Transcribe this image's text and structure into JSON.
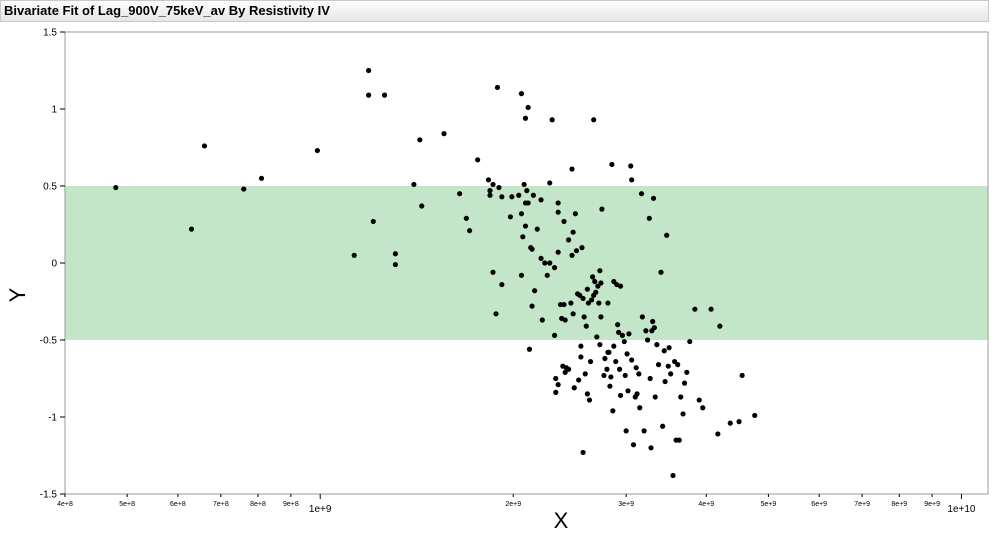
{
  "header": {
    "title": "Bivariate Fit of Lag_900V_75keV_av By Resistivity IV"
  },
  "chart_data": {
    "type": "scatter",
    "title": "Bivariate Fit of Lag_900V_75keV_av By Resistivity IV",
    "xlabel": "X",
    "ylabel": "Y",
    "x_scale": "log",
    "xlim": [
      400000000,
      11000000000
    ],
    "ylim": [
      -1.5,
      1.5
    ],
    "y_ticks": [
      {
        "value": 1.5,
        "label": "1.5"
      },
      {
        "value": 1,
        "label": "1"
      },
      {
        "value": 0.5,
        "label": "0.5"
      },
      {
        "value": 0,
        "label": "0"
      },
      {
        "value": -0.5,
        "label": "-0.5"
      },
      {
        "value": -1,
        "label": "-1"
      },
      {
        "value": -1.5,
        "label": "-1.5"
      }
    ],
    "x_ticks": [
      {
        "value": 400000000,
        "label": "4e+8"
      },
      {
        "value": 500000000,
        "label": "5e+8"
      },
      {
        "value": 600000000,
        "label": "6e+8"
      },
      {
        "value": 700000000,
        "label": "7e+8"
      },
      {
        "value": 800000000,
        "label": "8e+8"
      },
      {
        "value": 900000000,
        "label": "9e+8"
      },
      {
        "value": 1000000000,
        "label": "1e+9",
        "major": true
      },
      {
        "value": 2000000000,
        "label": "2e+9"
      },
      {
        "value": 3000000000,
        "label": "3e+9"
      },
      {
        "value": 4000000000,
        "label": "4e+9"
      },
      {
        "value": 5000000000,
        "label": "5e+9"
      },
      {
        "value": 6000000000,
        "label": "6e+9"
      },
      {
        "value": 7000000000,
        "label": "7e+9"
      },
      {
        "value": 8000000000,
        "label": "8e+9"
      },
      {
        "value": 9000000000,
        "label": "9e+9"
      },
      {
        "value": 10000000000,
        "label": "1e+10",
        "major": true
      }
    ],
    "band": {
      "y_min": -0.5,
      "y_max": 0.5,
      "color": "#c4e6c8"
    },
    "point_color": "#000000",
    "points": [
      [
        480000000.0,
        0.49
      ],
      [
        630000000.0,
        0.22
      ],
      [
        660000000.0,
        0.76
      ],
      [
        760000000.0,
        0.48
      ],
      [
        810000000.0,
        0.55
      ],
      [
        990000000.0,
        0.73
      ],
      [
        1130000000.0,
        0.05
      ],
      [
        1190000000.0,
        1.25
      ],
      [
        1190000000.0,
        1.09
      ],
      [
        1210000000.0,
        0.27
      ],
      [
        1260000000.0,
        1.09
      ],
      [
        1310000000.0,
        0.06
      ],
      [
        1310000000.0,
        -0.01
      ],
      [
        1400000000.0,
        0.51
      ],
      [
        1430000000.0,
        0.8
      ],
      [
        1440000000.0,
        0.37
      ],
      [
        1560000000.0,
        0.84
      ],
      [
        1650000000.0,
        0.45
      ],
      [
        1690000000.0,
        0.29
      ],
      [
        1710000000.0,
        0.21
      ],
      [
        1760000000.0,
        0.67
      ],
      [
        1830000000.0,
        0.54
      ],
      [
        1840000000.0,
        0.47
      ],
      [
        1840000000.0,
        0.44
      ],
      [
        1860000000.0,
        0.51
      ],
      [
        1860000000.0,
        -0.06
      ],
      [
        1880000000.0,
        -0.33
      ],
      [
        1890000000.0,
        1.14
      ],
      [
        1900000000.0,
        0.49
      ],
      [
        1920000000.0,
        0.43
      ],
      [
        1920000000.0,
        -0.14
      ],
      [
        1980000000.0,
        0.3
      ],
      [
        1990000000.0,
        0.43
      ],
      [
        2040000000.0,
        0.44
      ],
      [
        2060000000.0,
        0.32
      ],
      [
        2060000000.0,
        -0.08
      ],
      [
        2060000000.0,
        1.1
      ],
      [
        2070000000.0,
        0.17
      ],
      [
        2080000000.0,
        0.51
      ],
      [
        2090000000.0,
        0.39
      ],
      [
        2090000000.0,
        0.24
      ],
      [
        2090000000.0,
        0.94
      ],
      [
        2100000000.0,
        0.47
      ],
      [
        2110000000.0,
        1.01
      ],
      [
        2110000000.0,
        0.39
      ],
      [
        2120000000.0,
        -0.56
      ],
      [
        2130000000.0,
        0.1
      ],
      [
        2140000000.0,
        0.09
      ],
      [
        2140000000.0,
        -0.28
      ],
      [
        2150000000.0,
        0.44
      ],
      [
        2160000000.0,
        -0.18
      ],
      [
        2180000000.0,
        0.22
      ],
      [
        2210000000.0,
        0.03
      ],
      [
        2210000000.0,
        0.41
      ],
      [
        2220000000.0,
        -0.37
      ],
      [
        2240000000.0,
        0.0
      ],
      [
        2260000000.0,
        -0.08
      ],
      [
        2280000000.0,
        0.0
      ],
      [
        2280000000.0,
        0.52
      ],
      [
        2300000000.0,
        0.93
      ],
      [
        2320000000.0,
        -0.03
      ],
      [
        2320000000.0,
        -0.47
      ],
      [
        2330000000.0,
        -0.84
      ],
      [
        2330000000.0,
        -0.75
      ],
      [
        2350000000.0,
        0.39
      ],
      [
        2350000000.0,
        0.33
      ],
      [
        2350000000.0,
        0.07
      ],
      [
        2350000000.0,
        -0.79
      ],
      [
        2370000000.0,
        -0.27
      ],
      [
        2380000000.0,
        -0.36
      ],
      [
        2390000000.0,
        -0.67
      ],
      [
        2400000000.0,
        0.27
      ],
      [
        2400000000.0,
        -0.27
      ],
      [
        2410000000.0,
        -0.37
      ],
      [
        2410000000.0,
        -0.71
      ],
      [
        2420000000.0,
        -0.68
      ],
      [
        2440000000.0,
        0.15
      ],
      [
        2440000000.0,
        -0.69
      ],
      [
        2460000000.0,
        -0.26
      ],
      [
        2470000000.0,
        0.05
      ],
      [
        2470000000.0,
        0.61
      ],
      [
        2480000000.0,
        0.2
      ],
      [
        2480000000.0,
        -0.33
      ],
      [
        2490000000.0,
        -0.81
      ],
      [
        2500000000.0,
        0.32
      ],
      [
        2510000000.0,
        0.08
      ],
      [
        2520000000.0,
        -0.2
      ],
      [
        2530000000.0,
        -0.76
      ],
      [
        2540000000.0,
        -0.21
      ],
      [
        2550000000.0,
        -0.54
      ],
      [
        2550000000.0,
        -0.61
      ],
      [
        2560000000.0,
        0.1
      ],
      [
        2570000000.0,
        -1.23
      ],
      [
        2570000000.0,
        -0.23
      ],
      [
        2580000000.0,
        -0.35
      ],
      [
        2590000000.0,
        -0.72
      ],
      [
        2600000000.0,
        -0.41
      ],
      [
        2610000000.0,
        -0.85
      ],
      [
        2610000000.0,
        -0.17
      ],
      [
        2620000000.0,
        -0.26
      ],
      [
        2630000000.0,
        -0.89
      ],
      [
        2640000000.0,
        -0.64
      ],
      [
        2650000000.0,
        -0.24
      ],
      [
        2660000000.0,
        -0.09
      ],
      [
        2670000000.0,
        0.93
      ],
      [
        2670000000.0,
        -0.21
      ],
      [
        2680000000.0,
        -0.12
      ],
      [
        2690000000.0,
        -0.19
      ],
      [
        2700000000.0,
        -0.48
      ],
      [
        2710000000.0,
        -0.15
      ],
      [
        2720000000.0,
        -0.26
      ],
      [
        2730000000.0,
        -0.05
      ],
      [
        2730000000.0,
        -0.53
      ],
      [
        2740000000.0,
        -0.13
      ],
      [
        2740000000.0,
        -0.35
      ],
      [
        2750000000.0,
        0.35
      ],
      [
        2770000000.0,
        -0.73
      ],
      [
        2780000000.0,
        -0.62
      ],
      [
        2800000000.0,
        -0.69
      ],
      [
        2810000000.0,
        -0.26
      ],
      [
        2810000000.0,
        -0.58
      ],
      [
        2820000000.0,
        -0.58
      ],
      [
        2830000000.0,
        -0.8
      ],
      [
        2840000000.0,
        -0.74
      ],
      [
        2850000000.0,
        0.64
      ],
      [
        2860000000.0,
        -0.96
      ],
      [
        2870000000.0,
        -0.54
      ],
      [
        2870000000.0,
        -0.12
      ],
      [
        2890000000.0,
        -0.64
      ],
      [
        2900000000.0,
        -0.14
      ],
      [
        2910000000.0,
        -0.4
      ],
      [
        2920000000.0,
        -0.45
      ],
      [
        2930000000.0,
        -0.69
      ],
      [
        2940000000.0,
        -0.86
      ],
      [
        2940000000.0,
        -0.15
      ],
      [
        2960000000.0,
        -0.47
      ],
      [
        2980000000.0,
        -0.51
      ],
      [
        2990000000.0,
        -0.73
      ],
      [
        3000000000.0,
        -1.09
      ],
      [
        3010000000.0,
        -0.59
      ],
      [
        3020000000.0,
        -0.83
      ],
      [
        3030000000.0,
        -0.46
      ],
      [
        3050000000.0,
        0.63
      ],
      [
        3060000000.0,
        0.54
      ],
      [
        3060000000.0,
        -0.63
      ],
      [
        3080000000.0,
        -1.18
      ],
      [
        3100000000.0,
        -0.87
      ],
      [
        3110000000.0,
        -0.68
      ],
      [
        3120000000.0,
        -0.85
      ],
      [
        3140000000.0,
        -0.72
      ],
      [
        3150000000.0,
        -0.94
      ],
      [
        3170000000.0,
        0.45
      ],
      [
        3180000000.0,
        -0.35
      ],
      [
        3200000000.0,
        -1.09
      ],
      [
        3220000000.0,
        -0.44
      ],
      [
        3240000000.0,
        -0.5
      ],
      [
        3260000000.0,
        0.29
      ],
      [
        3270000000.0,
        -0.75
      ],
      [
        3280000000.0,
        -1.2
      ],
      [
        3290000000.0,
        -0.44
      ],
      [
        3300000000.0,
        -0.38
      ],
      [
        3310000000.0,
        0.42
      ],
      [
        3320000000.0,
        -0.42
      ],
      [
        3330000000.0,
        -0.87
      ],
      [
        3350000000.0,
        -0.53
      ],
      [
        3370000000.0,
        -0.66
      ],
      [
        3400000000.0,
        -0.06
      ],
      [
        3420000000.0,
        -1.06
      ],
      [
        3440000000.0,
        -0.57
      ],
      [
        3450000000.0,
        -0.77
      ],
      [
        3470000000.0,
        0.18
      ],
      [
        3490000000.0,
        -0.67
      ],
      [
        3500000000.0,
        -0.55
      ],
      [
        3520000000.0,
        -0.72
      ],
      [
        3550000000.0,
        -1.38
      ],
      [
        3570000000.0,
        -0.64
      ],
      [
        3590000000.0,
        -1.15
      ],
      [
        3610000000.0,
        -0.66
      ],
      [
        3630000000.0,
        -1.15
      ],
      [
        3650000000.0,
        -0.87
      ],
      [
        3680000000.0,
        -0.98
      ],
      [
        3700000000.0,
        -0.78
      ],
      [
        3730000000.0,
        -0.71
      ],
      [
        3770000000.0,
        -0.51
      ],
      [
        3840000000.0,
        -0.3
      ],
      [
        3900000000.0,
        -0.89
      ],
      [
        3950000000.0,
        -0.94
      ],
      [
        4070000000.0,
        -0.3
      ],
      [
        4170000000.0,
        -1.11
      ],
      [
        4200000000.0,
        -0.41
      ],
      [
        4360000000.0,
        -1.04
      ],
      [
        4500000000.0,
        -1.03
      ],
      [
        4550000000.0,
        -0.73
      ],
      [
        4760000000.0,
        -0.99
      ]
    ]
  }
}
